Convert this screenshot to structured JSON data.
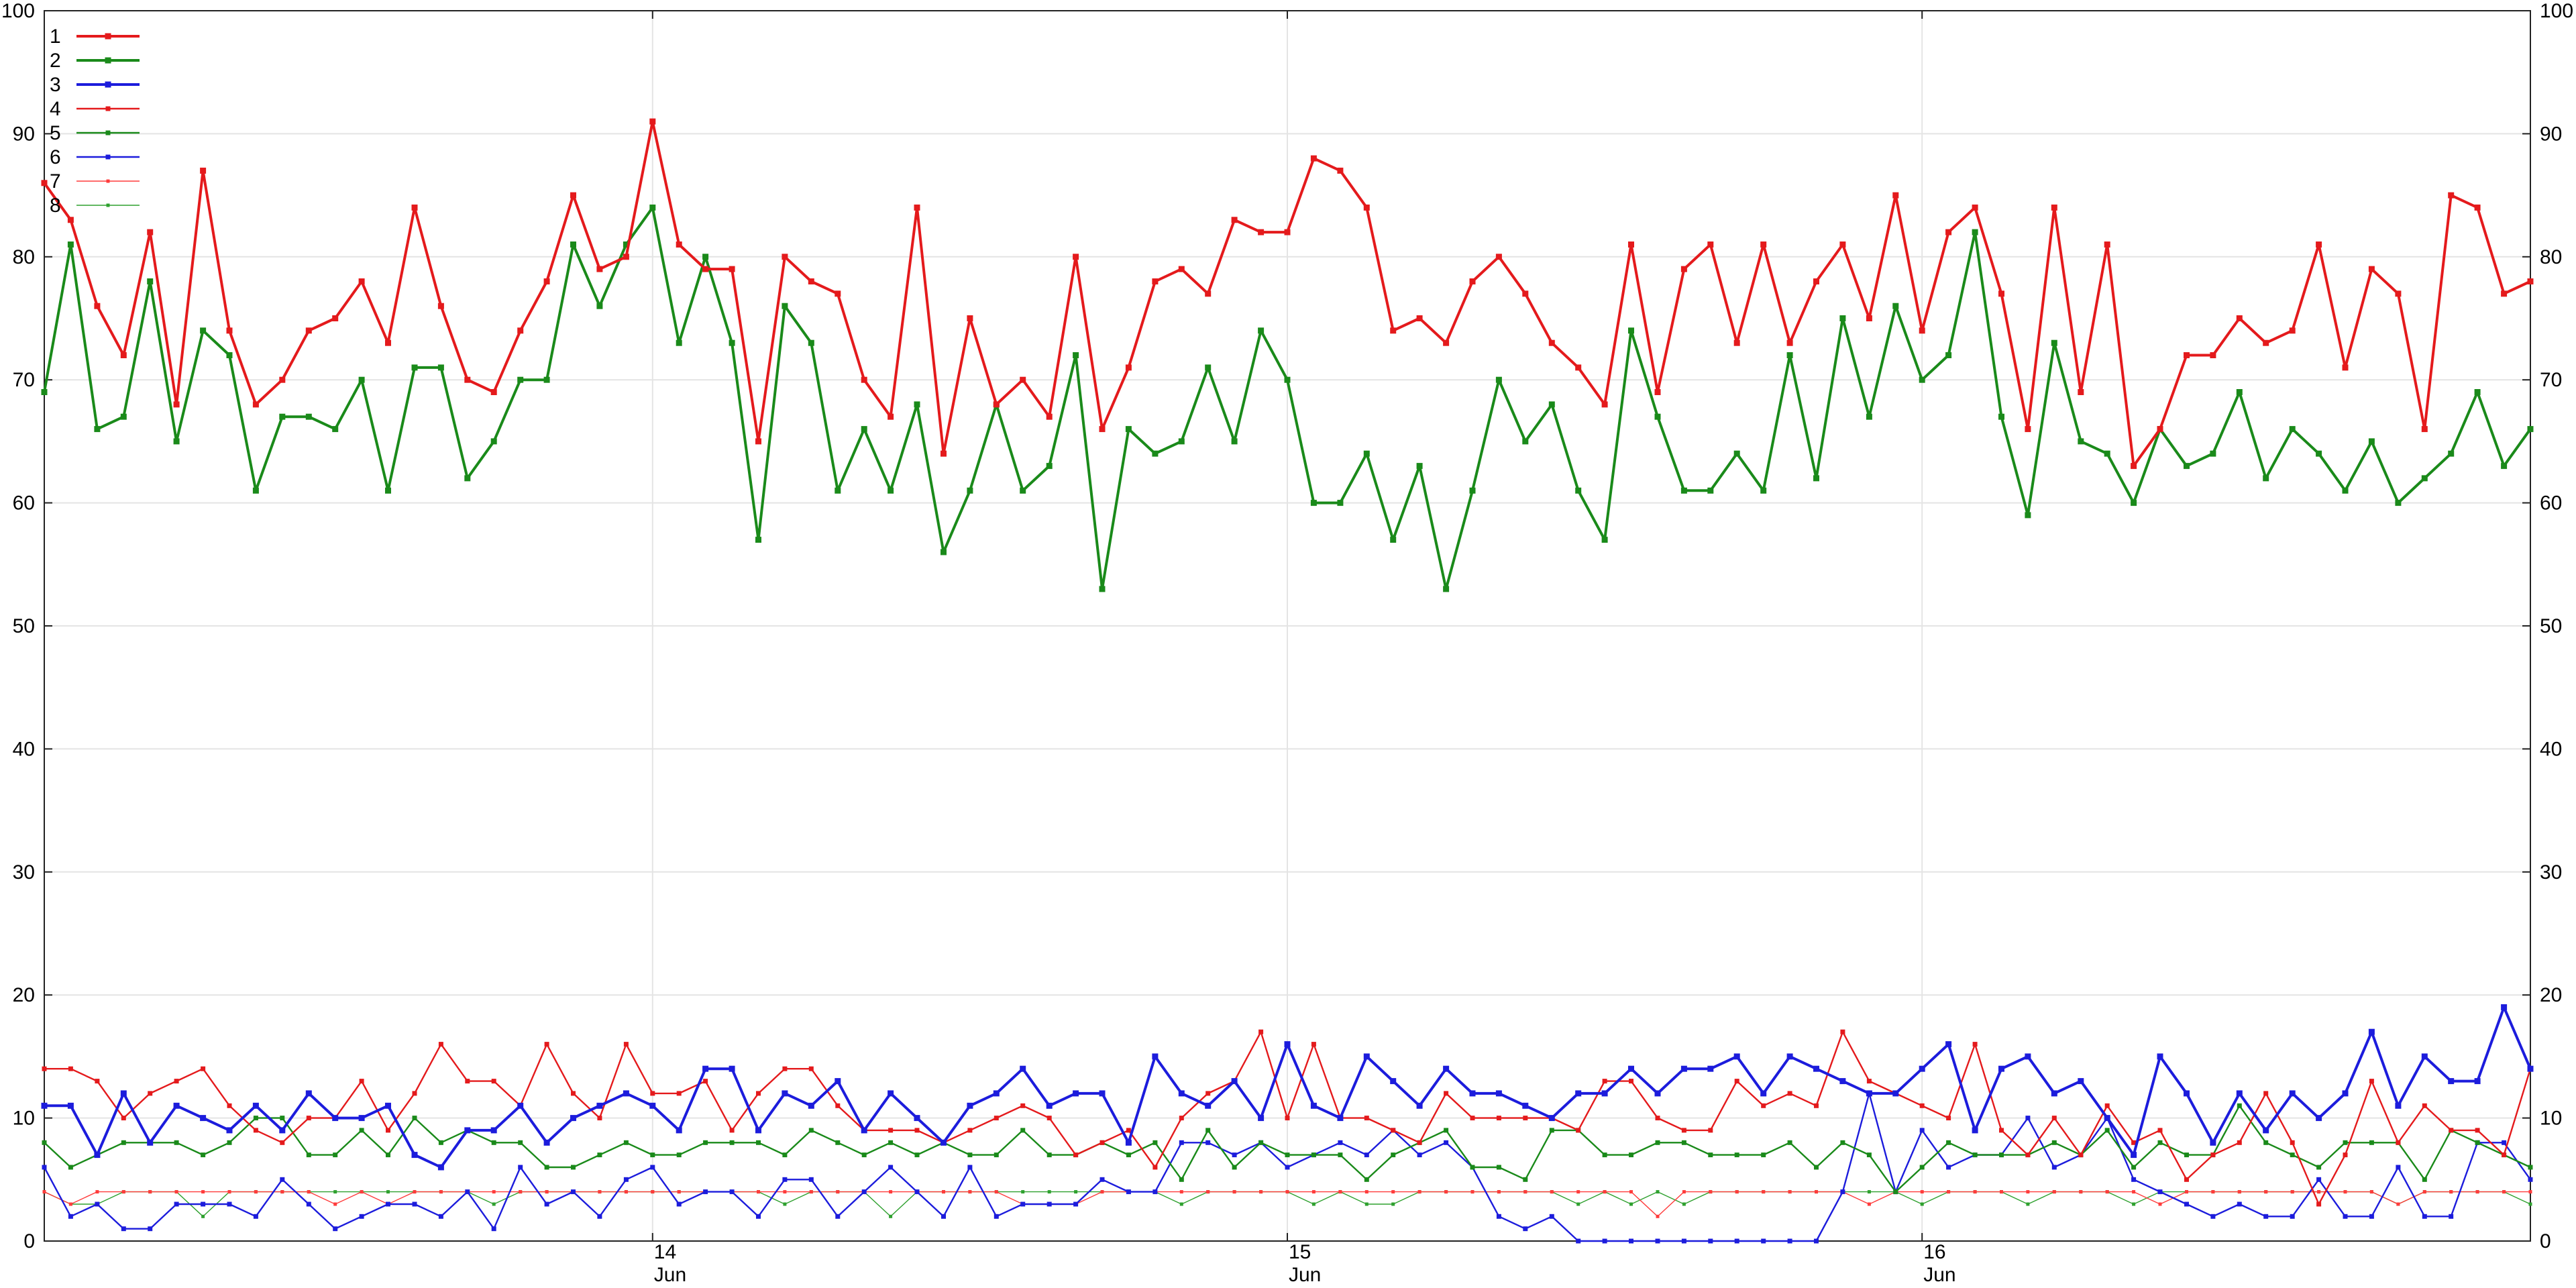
{
  "chart_data": {
    "type": "line",
    "title": "",
    "xlabel": "",
    "ylabel": "",
    "ylim": [
      0,
      100
    ],
    "y_ticks": [
      0,
      10,
      20,
      30,
      40,
      50,
      60,
      70,
      80,
      90,
      100
    ],
    "y_tick_labels": [
      "0",
      "10",
      "20",
      "30",
      "40",
      "50",
      "60",
      "70",
      "80",
      "90",
      "100"
    ],
    "x_ticks": [
      {
        "day": "14",
        "month": "Jun",
        "index": 23
      },
      {
        "day": "15",
        "month": "Jun",
        "index": 47
      },
      {
        "day": "16",
        "month": "Jun",
        "index": 71
      }
    ],
    "x_range_index": [
      0,
      94
    ],
    "grid": true,
    "legend_position": "top-left",
    "series": [
      {
        "name": "1",
        "color": "#e41a1c",
        "style": "thick",
        "values": [
          86,
          83,
          76,
          72,
          82,
          68,
          87,
          74,
          68,
          70,
          74,
          75,
          78,
          73,
          84,
          76,
          70,
          69,
          74,
          78,
          85,
          79,
          80,
          91,
          81,
          79,
          79,
          65,
          80,
          78,
          77,
          70,
          67,
          84,
          64,
          75,
          68,
          70,
          67,
          80,
          66,
          71,
          78,
          79,
          77,
          83,
          82,
          82,
          88,
          87,
          84,
          74,
          75,
          73,
          78,
          80,
          77,
          73,
          71,
          68,
          81,
          69,
          79,
          81,
          73,
          81,
          73,
          78,
          81,
          75,
          85,
          74,
          82,
          84,
          77,
          66,
          84,
          69,
          81,
          63,
          66,
          72,
          72,
          75,
          73,
          74,
          81,
          71,
          79,
          77,
          66,
          85,
          84,
          77,
          78
        ]
      },
      {
        "name": "2",
        "color": "#1a8a1a",
        "style": "thick",
        "values": [
          69,
          81,
          66,
          67,
          78,
          65,
          74,
          72,
          61,
          67,
          67,
          66,
          70,
          61,
          71,
          71,
          62,
          65,
          70,
          70,
          81,
          76,
          81,
          84,
          73,
          80,
          73,
          57,
          76,
          73,
          61,
          66,
          61,
          68,
          56,
          61,
          68,
          61,
          63,
          72,
          53,
          66,
          64,
          65,
          71,
          65,
          74,
          70,
          60,
          60,
          64,
          57,
          63,
          53,
          61,
          70,
          65,
          68,
          61,
          57,
          74,
          67,
          61,
          61,
          64,
          61,
          72,
          62,
          75,
          67,
          76,
          70,
          72,
          82,
          67,
          59,
          73,
          65,
          64,
          60,
          66,
          63,
          64,
          69,
          62,
          66,
          64,
          61,
          65,
          60,
          62,
          64,
          69,
          63,
          66
        ]
      },
      {
        "name": "3",
        "color": "#1c1cdc",
        "style": "thick",
        "values": [
          11,
          11,
          7,
          12,
          8,
          11,
          10,
          9,
          11,
          9,
          12,
          10,
          10,
          11,
          7,
          6,
          9,
          9,
          11,
          8,
          10,
          11,
          12,
          11,
          9,
          14,
          14,
          9,
          12,
          11,
          13,
          9,
          12,
          10,
          8,
          11,
          12,
          14,
          11,
          12,
          12,
          8,
          15,
          12,
          11,
          13,
          10,
          16,
          11,
          10,
          15,
          13,
          11,
          14,
          12,
          12,
          11,
          10,
          12,
          12,
          14,
          12,
          14,
          14,
          15,
          12,
          15,
          14,
          13,
          12,
          12,
          14,
          16,
          9,
          14,
          15,
          12,
          13,
          10,
          7,
          15,
          12,
          8,
          12,
          9,
          12,
          10,
          12,
          17,
          11,
          15,
          13,
          13,
          19,
          14
        ]
      },
      {
        "name": "4",
        "color": "#e41a1c",
        "style": "thin",
        "values": [
          14,
          14,
          13,
          10,
          12,
          13,
          14,
          11,
          9,
          8,
          10,
          10,
          13,
          9,
          12,
          16,
          13,
          13,
          11,
          16,
          12,
          10,
          16,
          12,
          12,
          13,
          9,
          12,
          14,
          14,
          11,
          9,
          9,
          9,
          8,
          9,
          10,
          11,
          10,
          7,
          8,
          9,
          6,
          10,
          12,
          13,
          17,
          10,
          16,
          10,
          10,
          9,
          8,
          12,
          10,
          10,
          10,
          10,
          9,
          13,
          13,
          10,
          9,
          9,
          13,
          11,
          12,
          11,
          17,
          13,
          12,
          11,
          10,
          16,
          9,
          7,
          10,
          7,
          11,
          8,
          9,
          5,
          7,
          8,
          12,
          8,
          3,
          7,
          13,
          8,
          11,
          9,
          9,
          7,
          14
        ]
      },
      {
        "name": "5",
        "color": "#1a8a1a",
        "style": "thin",
        "values": [
          8,
          6,
          7,
          8,
          8,
          8,
          7,
          8,
          10,
          10,
          7,
          7,
          9,
          7,
          10,
          8,
          9,
          8,
          8,
          6,
          6,
          7,
          8,
          7,
          7,
          8,
          8,
          8,
          7,
          9,
          8,
          7,
          8,
          7,
          8,
          7,
          7,
          9,
          7,
          7,
          8,
          7,
          8,
          5,
          9,
          6,
          8,
          7,
          7,
          7,
          5,
          7,
          8,
          9,
          6,
          6,
          5,
          9,
          9,
          7,
          7,
          8,
          8,
          7,
          7,
          7,
          8,
          6,
          8,
          7,
          4,
          6,
          8,
          7,
          7,
          7,
          8,
          7,
          9,
          6,
          8,
          7,
          7,
          11,
          8,
          7,
          6,
          8,
          8,
          8,
          5,
          9,
          8,
          7,
          6
        ]
      },
      {
        "name": "6",
        "color": "#1c1cdc",
        "style": "thin",
        "values": [
          6,
          2,
          3,
          1,
          1,
          3,
          3,
          3,
          2,
          5,
          3,
          1,
          2,
          3,
          3,
          2,
          4,
          1,
          6,
          3,
          4,
          2,
          5,
          6,
          3,
          4,
          4,
          2,
          5,
          5,
          2,
          4,
          6,
          4,
          2,
          6,
          2,
          3,
          3,
          3,
          5,
          4,
          4,
          8,
          8,
          7,
          8,
          6,
          7,
          8,
          7,
          9,
          7,
          8,
          6,
          2,
          1,
          2,
          0,
          0,
          0,
          0,
          0,
          0,
          0,
          0,
          0,
          0,
          4,
          12,
          4,
          9,
          6,
          7,
          7,
          10,
          6,
          7,
          10,
          5,
          4,
          3,
          2,
          3,
          2,
          2,
          5,
          2,
          2,
          6,
          2,
          2,
          8,
          8,
          5
        ]
      },
      {
        "name": "7",
        "color": "#ff3b3b",
        "style": "fine",
        "values": [
          4,
          3,
          4,
          4,
          4,
          4,
          4,
          4,
          4,
          4,
          4,
          3,
          4,
          3,
          4,
          4,
          4,
          4,
          4,
          4,
          4,
          4,
          4,
          4,
          4,
          4,
          4,
          4,
          4,
          4,
          4,
          4,
          4,
          4,
          4,
          4,
          4,
          3,
          3,
          3,
          4,
          4,
          4,
          4,
          4,
          4,
          4,
          4,
          4,
          4,
          4,
          4,
          4,
          4,
          4,
          4,
          4,
          4,
          4,
          4,
          4,
          2,
          4,
          4,
          4,
          4,
          4,
          4,
          4,
          3,
          4,
          4,
          4,
          4,
          4,
          4,
          4,
          4,
          4,
          4,
          3,
          4,
          4,
          4,
          4,
          4,
          4,
          4,
          4,
          3,
          4,
          4,
          4,
          4,
          4
        ]
      },
      {
        "name": "8",
        "color": "#2ea02e",
        "style": "fine",
        "values": [
          4,
          3,
          3,
          4,
          4,
          4,
          2,
          4,
          4,
          4,
          4,
          4,
          4,
          4,
          4,
          4,
          4,
          3,
          4,
          4,
          4,
          4,
          4,
          4,
          4,
          4,
          4,
          4,
          3,
          4,
          4,
          4,
          2,
          4,
          4,
          4,
          4,
          4,
          4,
          4,
          4,
          4,
          4,
          3,
          4,
          4,
          4,
          4,
          3,
          4,
          3,
          3,
          4,
          4,
          4,
          4,
          4,
          4,
          3,
          4,
          3,
          4,
          3,
          4,
          4,
          4,
          4,
          4,
          4,
          4,
          4,
          3,
          4,
          4,
          4,
          3,
          4,
          4,
          4,
          3,
          4,
          4,
          4,
          4,
          4,
          4,
          4,
          4,
          4,
          3,
          4,
          4,
          4,
          4,
          3
        ]
      }
    ]
  }
}
